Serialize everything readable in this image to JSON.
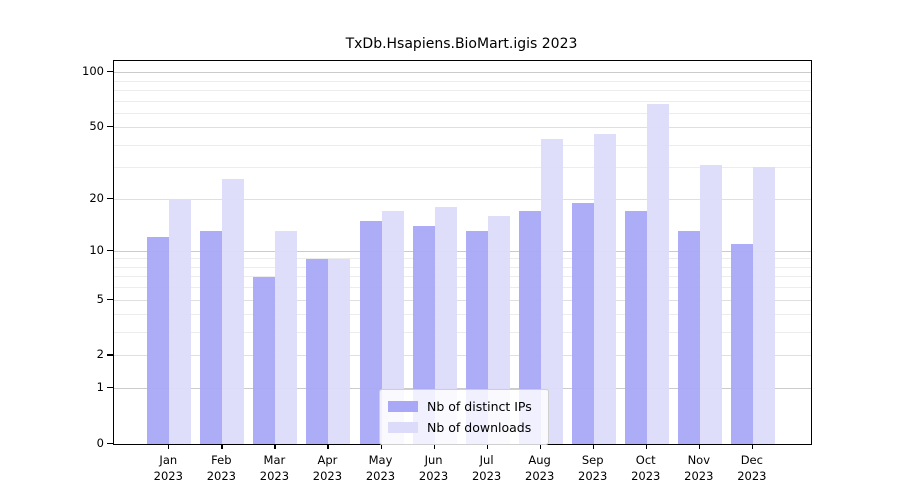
{
  "title": "TxDb.Hsapiens.BioMart.igis 2023",
  "chart_data": {
    "type": "bar",
    "title": "TxDb.Hsapiens.BioMart.igis 2023",
    "categories": [
      "Jan",
      "Feb",
      "Mar",
      "Apr",
      "May",
      "Jun",
      "Jul",
      "Aug",
      "Sep",
      "Oct",
      "Nov",
      "Dec"
    ],
    "year_label": "2023",
    "series": [
      {
        "name": "Nb of distinct IPs",
        "color": "#a8a8f7",
        "values": [
          12,
          13,
          7,
          9,
          15,
          14,
          13,
          17,
          19,
          17,
          13,
          11
        ]
      },
      {
        "name": "Nb of downloads",
        "color": "#dcdcfa",
        "values": [
          20,
          26,
          13,
          9,
          17,
          18,
          16,
          43,
          46,
          67,
          31,
          30
        ]
      }
    ],
    "xlabel": "",
    "ylabel": "",
    "yscale": "log1p",
    "ylim": [
      0,
      115
    ],
    "yticks": [
      0,
      1,
      2,
      5,
      10,
      20,
      50,
      100
    ],
    "yticks_major": [
      1,
      10,
      100
    ],
    "yticks_mid": [
      2,
      5,
      20,
      50
    ],
    "yticks_minor": [
      3,
      4,
      6,
      7,
      8,
      9,
      30,
      40,
      60,
      70,
      80,
      90
    ],
    "grid": "on",
    "legend_position": "lower center"
  }
}
